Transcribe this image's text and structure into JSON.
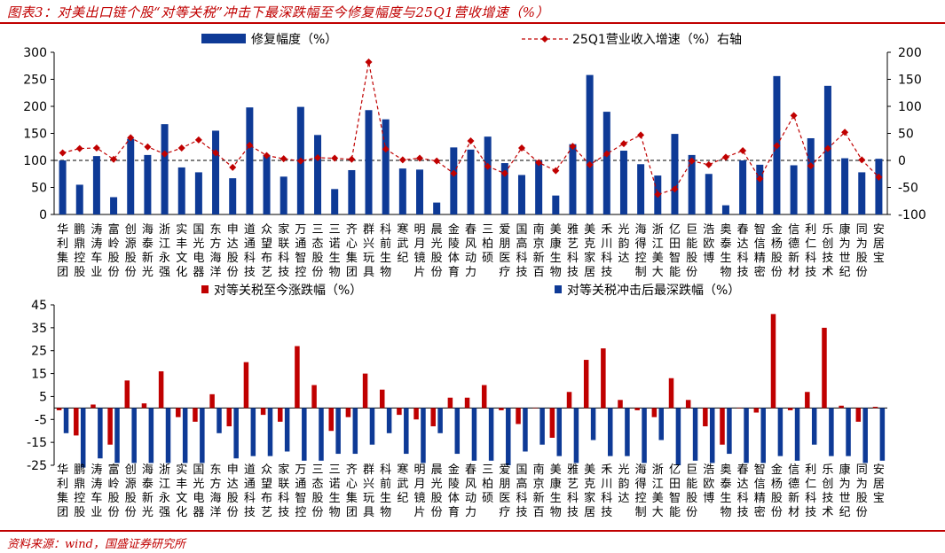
{
  "title": "图表3：对美出口链个股“对等关税”冲击下最深跌幅至今修复幅度与25Q1营收增速（%）",
  "source": "资料来源：wind，国盛证券研究所",
  "colors": {
    "blue": "#0e3a96",
    "red": "#c00000",
    "rule": "#c00000"
  },
  "chart_data": [
    {
      "type": "bar",
      "title": "",
      "categories": [
        "华利集团",
        "鹏鼎控股",
        "涛涛车业",
        "富岭股份",
        "创源股份",
        "海泰新光",
        "浙江永强",
        "实丰文化",
        "国光电器",
        "东方海洋",
        "申达股份",
        "道通科技",
        "众望布艺",
        "家联科技",
        "万通智控",
        "三态股份",
        "三诺生物",
        "齐心集团",
        "群兴玩具",
        "科前生物",
        "寒武纪",
        "明月镜片",
        "晨光股份",
        "金陵体育",
        "春风动力",
        "三柏硕",
        "爱朋医疗",
        "国高科技",
        "南京新百",
        "美康生物",
        "雅艺科技",
        "美克家居",
        "禾川科技",
        "光韵达",
        "海得控制",
        "浙江美大",
        "亿田智能",
        "巨能股份",
        "浩欧博",
        "奥泰生物",
        "春达科技",
        "智信精密",
        "金杨股份",
        "信德新材",
        "利仁科技",
        "乐创技术",
        "康为世纪",
        "同为股份",
        "安居宝"
      ],
      "series": [
        {
          "name": "修复幅度（%）",
          "axis": "left",
          "values": [
            100,
            55,
            108,
            32,
            140,
            110,
            167,
            87,
            78,
            155,
            67,
            198,
            110,
            70,
            199,
            147,
            47,
            82,
            193,
            176,
            85,
            83,
            22,
            124,
            120,
            144,
            95,
            73,
            100,
            35,
            130,
            258,
            190,
            118,
            93,
            72,
            149,
            110,
            75,
            17,
            100,
            92,
            256,
            91,
            141,
            238,
            104,
            78,
            103
          ]
        },
        {
          "name": "25Q1营业收入增速（%）右轴",
          "axis": "right",
          "values": [
            14,
            22,
            23,
            2,
            42,
            25,
            12,
            23,
            38,
            14,
            -13,
            28,
            9,
            3,
            -1,
            5,
            4,
            2,
            182,
            21,
            1,
            4,
            -1,
            -24,
            36,
            -11,
            -24,
            23,
            -4,
            -19,
            26,
            -8,
            12,
            31,
            47,
            -63,
            -53,
            -1,
            -8,
            6,
            18,
            -34,
            27,
            83,
            -10,
            22,
            52,
            1,
            -31
          ]
        }
      ],
      "ylim": [
        0,
        300
      ],
      "yticks": [
        0,
        50,
        100,
        150,
        200,
        250,
        300
      ],
      "ylim_right": [
        -100,
        200
      ],
      "yticks_right": [
        -100,
        -50,
        0,
        50,
        100,
        150,
        200
      ],
      "legend": [
        "修复幅度（%）",
        "25Q1营业收入增速（%）右轴"
      ]
    },
    {
      "type": "bar",
      "title": "",
      "series": [
        {
          "name": "对等关税至今涨跌幅（%）",
          "values": [
            -1,
            -12,
            1.5,
            -16,
            12,
            2,
            16,
            -4,
            -6,
            6,
            -8,
            20,
            -3,
            -6,
            27,
            10,
            -10,
            -4,
            15,
            8,
            -3,
            -5,
            -8,
            4.5,
            4.5,
            10,
            -1,
            -7,
            0,
            -13,
            7,
            21,
            26,
            3.5,
            -1,
            -4,
            13,
            3.5,
            -8,
            -16,
            0,
            -2,
            41,
            -1,
            7,
            35,
            1,
            -6,
            0.5
          ]
        },
        {
          "name": "对等关税冲击后最深跌幅（%）",
          "values": [
            -11,
            -26,
            -22,
            -24,
            -24,
            -24,
            -24,
            -24,
            -24,
            -11,
            -22,
            -21,
            -21,
            -19,
            -23,
            -23,
            -20,
            -20,
            -16,
            -11,
            -20,
            -24,
            -11,
            -20,
            -23,
            -23,
            -25,
            -19,
            -16,
            -21,
            -24,
            -14,
            -21,
            -21,
            -24,
            -14,
            -25,
            -23,
            -24,
            -20,
            -24,
            -24,
            -21,
            -23,
            -16,
            -21,
            -21,
            -24,
            -23
          ]
        }
      ],
      "ylim": [
        -25,
        45
      ],
      "yticks": [
        -25,
        -15,
        -5,
        5,
        15,
        25,
        35,
        45
      ],
      "legend": [
        "对等关税至今涨跌幅（%）",
        "对等关税冲击后最深跌幅（%）"
      ]
    }
  ]
}
